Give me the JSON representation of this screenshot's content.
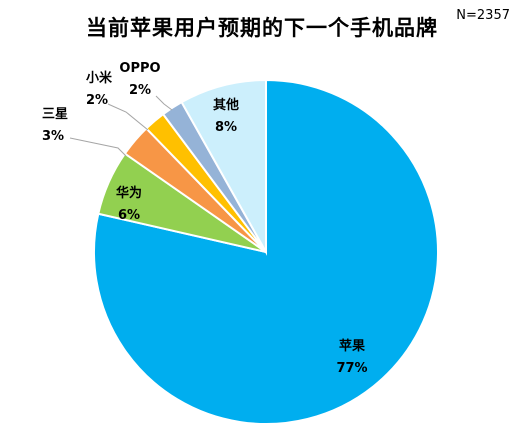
{
  "chart_data": {
    "type": "pie",
    "title": "当前苹果用户预期的下一个手机品牌",
    "sample_note": "N=2357",
    "slices": [
      {
        "name": "苹果",
        "value": 77,
        "label": "77%",
        "color": "#00AEEF"
      },
      {
        "name": "华为",
        "value": 6,
        "label": "6%",
        "color": "#92D050"
      },
      {
        "name": "三星",
        "value": 3,
        "label": "3%",
        "color": "#F79646"
      },
      {
        "name": "小米",
        "value": 2,
        "label": "2%",
        "color": "#FFC000"
      },
      {
        "name": "OPPO",
        "value": 2,
        "label": "2%",
        "color": "#95B3D7"
      },
      {
        "name": "其他",
        "value": 8,
        "label": "8%",
        "color": "#CCEFFC"
      }
    ]
  }
}
